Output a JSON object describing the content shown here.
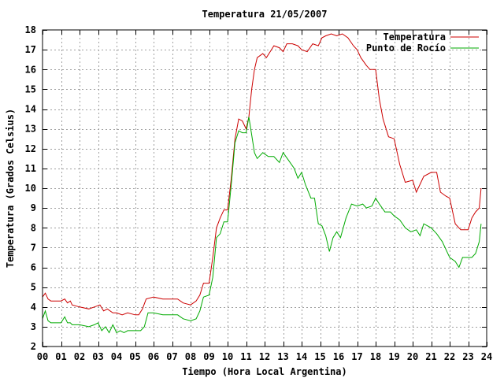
{
  "chart_data": {
    "type": "line",
    "title": "Temperatura 21/05/2007",
    "xlabel": "Tiempo (Hora Local Argentina)",
    "ylabel": "Temperatura (Grados Celsius)",
    "xlim": [
      0,
      24
    ],
    "ylim": [
      2,
      18
    ],
    "grid": true,
    "legend_position": "top-right",
    "x_ticks": [
      {
        "value": 0,
        "label": "00"
      },
      {
        "value": 1,
        "label": "01"
      },
      {
        "value": 2,
        "label": "02"
      },
      {
        "value": 3,
        "label": "03"
      },
      {
        "value": 4,
        "label": "04"
      },
      {
        "value": 5,
        "label": "05"
      },
      {
        "value": 6,
        "label": "06"
      },
      {
        "value": 7,
        "label": "07"
      },
      {
        "value": 8,
        "label": "08"
      },
      {
        "value": 9,
        "label": "09"
      },
      {
        "value": 10,
        "label": "10"
      },
      {
        "value": 11,
        "label": "11"
      },
      {
        "value": 12,
        "label": "12"
      },
      {
        "value": 13,
        "label": "13"
      },
      {
        "value": 14,
        "label": "14"
      },
      {
        "value": 15,
        "label": "15"
      },
      {
        "value": 16,
        "label": "16"
      },
      {
        "value": 17,
        "label": "17"
      },
      {
        "value": 18,
        "label": "18"
      },
      {
        "value": 19,
        "label": "19"
      },
      {
        "value": 20,
        "label": "20"
      },
      {
        "value": 21,
        "label": "21"
      },
      {
        "value": 22,
        "label": "22"
      },
      {
        "value": 23,
        "label": "23"
      },
      {
        "value": 24,
        "label": "24"
      }
    ],
    "y_ticks": [
      {
        "value": 2,
        "label": "2"
      },
      {
        "value": 3,
        "label": "3"
      },
      {
        "value": 4,
        "label": "4"
      },
      {
        "value": 5,
        "label": "5"
      },
      {
        "value": 6,
        "label": "6"
      },
      {
        "value": 7,
        "label": "7"
      },
      {
        "value": 8,
        "label": "8"
      },
      {
        "value": 9,
        "label": "9"
      },
      {
        "value": 10,
        "label": "10"
      },
      {
        "value": 11,
        "label": "11"
      },
      {
        "value": 12,
        "label": "12"
      },
      {
        "value": 13,
        "label": "13"
      },
      {
        "value": 14,
        "label": "14"
      },
      {
        "value": 15,
        "label": "15"
      },
      {
        "value": 16,
        "label": "16"
      },
      {
        "value": 17,
        "label": "17"
      },
      {
        "value": 18,
        "label": "18"
      }
    ],
    "series": [
      {
        "name": "Temperatura",
        "color": "#cc0000",
        "x": [
          0,
          0.15,
          0.3,
          0.45,
          0.6,
          1.0,
          1.2,
          1.35,
          1.5,
          1.6,
          2.0,
          2.5,
          2.8,
          3.1,
          3.3,
          3.5,
          3.8,
          4.0,
          4.3,
          4.6,
          5.0,
          5.2,
          5.4,
          5.6,
          6.0,
          6.5,
          7.0,
          7.3,
          7.6,
          8.0,
          8.3,
          8.5,
          8.7,
          9.0,
          9.2,
          9.4,
          9.6,
          9.8,
          10.0,
          10.2,
          10.4,
          10.6,
          10.8,
          11.0,
          11.15,
          11.3,
          11.45,
          11.6,
          11.9,
          12.1,
          12.3,
          12.5,
          12.8,
          13.0,
          13.2,
          13.5,
          13.8,
          14.0,
          14.3,
          14.6,
          14.9,
          15.1,
          15.3,
          15.6,
          15.9,
          16.2,
          16.5,
          16.8,
          17.0,
          17.2,
          17.5,
          17.7,
          18.0,
          18.2,
          18.4,
          18.7,
          19.0,
          19.3,
          19.6,
          20.0,
          20.2,
          20.4,
          20.6,
          21.0,
          21.3,
          21.5,
          21.8,
          22.0,
          22.3,
          22.6,
          23.0,
          23.2,
          23.4,
          23.6,
          23.7
        ],
        "values": [
          4.5,
          4.7,
          4.4,
          4.3,
          4.3,
          4.3,
          4.4,
          4.2,
          4.3,
          4.1,
          4.0,
          3.9,
          4.0,
          4.1,
          3.8,
          3.9,
          3.7,
          3.7,
          3.6,
          3.7,
          3.6,
          3.6,
          3.9,
          4.4,
          4.5,
          4.4,
          4.4,
          4.4,
          4.2,
          4.1,
          4.3,
          4.6,
          5.2,
          5.2,
          6.5,
          8.0,
          8.5,
          8.9,
          8.9,
          10.5,
          12.5,
          13.5,
          13.4,
          13.0,
          13.6,
          15.0,
          16.0,
          16.6,
          16.8,
          16.6,
          16.9,
          17.2,
          17.1,
          16.9,
          17.3,
          17.3,
          17.2,
          17.0,
          16.9,
          17.3,
          17.2,
          17.6,
          17.7,
          17.8,
          17.7,
          17.8,
          17.6,
          17.2,
          17.0,
          16.6,
          16.2,
          16.0,
          16.0,
          14.5,
          13.5,
          12.6,
          12.5,
          11.2,
          10.3,
          10.4,
          9.8,
          10.2,
          10.6,
          10.8,
          10.8,
          9.8,
          9.6,
          9.5,
          8.2,
          7.9,
          7.9,
          8.5,
          8.8,
          9.0,
          10.0
        ]
      },
      {
        "name": "Punto de Rocío",
        "color": "#00aa00",
        "x": [
          0,
          0.15,
          0.3,
          0.45,
          0.6,
          1.0,
          1.2,
          1.35,
          1.5,
          1.6,
          2.0,
          2.5,
          2.8,
          3.0,
          3.2,
          3.4,
          3.6,
          3.8,
          4.0,
          4.2,
          4.4,
          4.6,
          5.0,
          5.3,
          5.5,
          5.7,
          6.0,
          6.5,
          7.0,
          7.3,
          7.6,
          8.0,
          8.3,
          8.5,
          8.7,
          9.0,
          9.2,
          9.4,
          9.6,
          9.8,
          10.0,
          10.2,
          10.4,
          10.6,
          10.8,
          11.0,
          11.15,
          11.3,
          11.45,
          11.6,
          11.9,
          12.2,
          12.5,
          12.8,
          13.0,
          13.3,
          13.6,
          13.8,
          14.0,
          14.2,
          14.5,
          14.7,
          14.9,
          15.1,
          15.3,
          15.5,
          15.7,
          15.9,
          16.1,
          16.4,
          16.7,
          17.0,
          17.3,
          17.5,
          17.8,
          18.0,
          18.2,
          18.5,
          18.8,
          19.0,
          19.3,
          19.6,
          19.9,
          20.2,
          20.4,
          20.6,
          21.0,
          21.3,
          21.6,
          22.0,
          22.3,
          22.5,
          22.7,
          23.0,
          23.2,
          23.4,
          23.6,
          23.7
        ],
        "values": [
          3.4,
          3.8,
          3.3,
          3.2,
          3.2,
          3.2,
          3.5,
          3.2,
          3.2,
          3.1,
          3.1,
          3.0,
          3.1,
          3.2,
          2.8,
          3.0,
          2.7,
          3.1,
          2.7,
          2.8,
          2.7,
          2.8,
          2.8,
          2.8,
          3.0,
          3.7,
          3.7,
          3.6,
          3.6,
          3.6,
          3.4,
          3.3,
          3.4,
          3.8,
          4.5,
          4.6,
          5.5,
          7.5,
          7.7,
          8.3,
          8.3,
          10.2,
          12.3,
          12.9,
          12.8,
          12.8,
          13.6,
          12.7,
          11.8,
          11.5,
          11.8,
          11.6,
          11.6,
          11.3,
          11.8,
          11.4,
          11.0,
          10.5,
          10.8,
          10.2,
          9.5,
          9.5,
          8.2,
          8.1,
          7.6,
          6.8,
          7.5,
          7.8,
          7.5,
          8.5,
          9.2,
          9.1,
          9.2,
          9.0,
          9.1,
          9.5,
          9.2,
          8.8,
          8.8,
          8.6,
          8.4,
          8.0,
          7.8,
          7.9,
          7.6,
          8.2,
          8.0,
          7.7,
          7.3,
          6.5,
          6.3,
          6.0,
          6.5,
          6.5,
          6.5,
          6.7,
          7.3,
          8.2
        ]
      }
    ]
  }
}
